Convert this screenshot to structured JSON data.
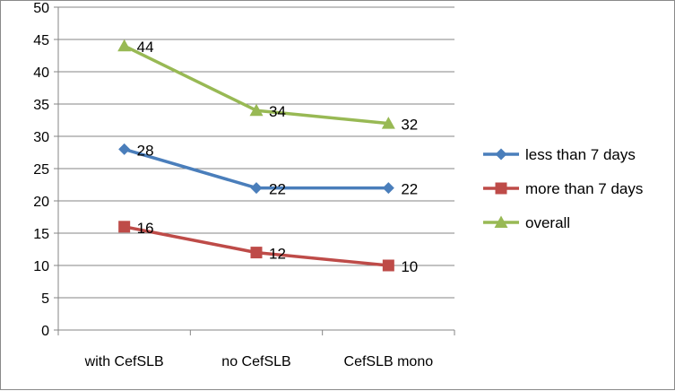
{
  "chart_data": {
    "type": "line",
    "title": "",
    "xlabel": "",
    "ylabel": "",
    "ylim": [
      0,
      50
    ],
    "ytick_step": 5,
    "grid": true,
    "legend_position": "right",
    "categories": [
      "with CefSLB",
      "no CefSLB",
      "CefSLB mono"
    ],
    "series": [
      {
        "name": "less than 7 days",
        "values": [
          28,
          22,
          22
        ],
        "color": "#4a7ebb",
        "marker": "diamond"
      },
      {
        "name": "more than 7 days",
        "values": [
          16,
          12,
          10
        ],
        "color": "#be4b48",
        "marker": "square"
      },
      {
        "name": "overall",
        "values": [
          44,
          34,
          32
        ],
        "color": "#98b954",
        "marker": "triangle"
      }
    ]
  }
}
